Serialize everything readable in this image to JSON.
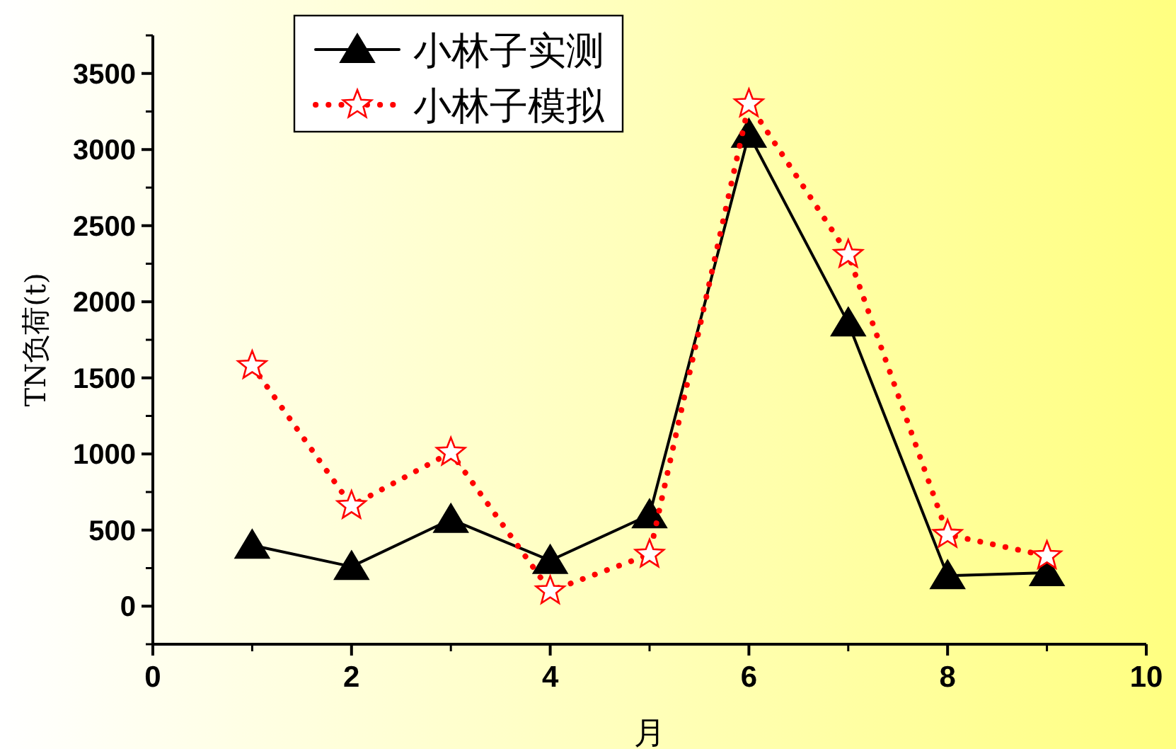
{
  "chart_data": {
    "type": "line",
    "xlabel": "月",
    "ylabel": "TN负荷(t)",
    "xlim": [
      0,
      10
    ],
    "xticks": [
      0,
      2,
      4,
      6,
      8,
      10
    ],
    "ylim": [
      -250,
      3750
    ],
    "yticks": [
      0,
      500,
      1000,
      1500,
      2000,
      2500,
      3000,
      3500
    ],
    "grid": false,
    "legend": "top",
    "series": [
      {
        "name": "小林子实测",
        "color": "#000000",
        "marker": "triangle",
        "line_style": "solid",
        "x": [
          1,
          2,
          3,
          4,
          5,
          6,
          7,
          8,
          9
        ],
        "values": [
          400,
          260,
          570,
          300,
          600,
          3100,
          1860,
          200,
          220
        ]
      },
      {
        "name": "小林子模拟",
        "color": "#ff0000",
        "marker": "star",
        "line_style": "dotted",
        "x": [
          1,
          2,
          3,
          4,
          5,
          6,
          7,
          8,
          9
        ],
        "values": [
          1580,
          660,
          1010,
          100,
          340,
          3300,
          2310,
          470,
          330
        ]
      }
    ]
  }
}
